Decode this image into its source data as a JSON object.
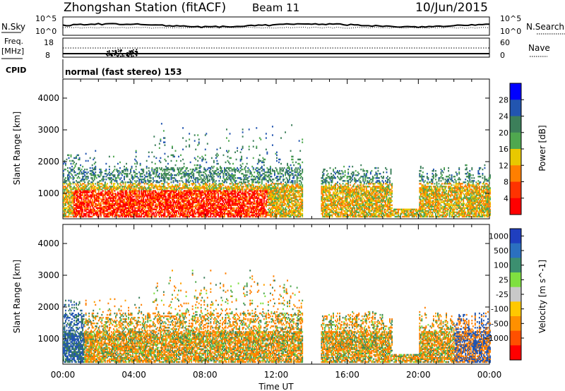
{
  "header": {
    "title": "Zhongshan Station (fitACF)",
    "beam": "Beam 11",
    "date": "10/Jun/2015"
  },
  "top_panel": {
    "left_label": "N.Sky",
    "right_label": "N.Search",
    "left_ticks": [
      "10^5",
      "10^0"
    ],
    "right_ticks": [
      "10^5",
      "10^0"
    ]
  },
  "freq_panel": {
    "left_label_1": "Freq.",
    "left_label_2": "[MHz]",
    "right_label": "Nave",
    "left_ticks": [
      "18",
      "8"
    ],
    "right_ticks": [
      "60",
      "0"
    ]
  },
  "cpid": {
    "label": "CPID",
    "mode_text": "normal (fast stereo) 153"
  },
  "x_axis": {
    "label": "Time UT",
    "ticks": [
      "00:00",
      "04:00",
      "08:00",
      "12:00",
      "16:00",
      "20:00",
      "00:00"
    ]
  },
  "colors": {
    "red": "#ff0000",
    "orange": "#ff7f00",
    "yellow": "#e8c800",
    "green": "#4fa84f",
    "darkgreen": "#3c7f5a",
    "blue": "#2255b0",
    "lightgray": "#c8c8c8",
    "lightgreen": "#7fe040"
  },
  "chart_data": [
    {
      "type": "heatmap",
      "title": "",
      "xlabel": "Time UT",
      "ylabel": "Slant Range [km]",
      "ylim": [
        200,
        4600
      ],
      "xlim": [
        0,
        24
      ],
      "yticks": [
        "1000",
        "2000",
        "3000",
        "4000"
      ],
      "colorbar_label": "Power [dB]",
      "colorbar_ticks": [
        "4",
        "8",
        "12",
        "16",
        "20",
        "24",
        "28"
      ],
      "colorbar_colors": [
        "#0000ff",
        "#2255b0",
        "#3c7f5a",
        "#4fa84f",
        "#e8c800",
        "#ff7f00",
        "#ff3300",
        "#ff0000"
      ]
    },
    {
      "type": "heatmap",
      "title": "",
      "xlabel": "Time UT",
      "ylabel": "Slant Range [km]",
      "ylim": [
        200,
        4600
      ],
      "xlim": [
        0,
        24
      ],
      "yticks": [
        "1000",
        "2000",
        "3000",
        "4000"
      ],
      "colorbar_label": "Velocity [m s^-1]",
      "colorbar_ticks": [
        "1000",
        "500",
        "100",
        "25",
        "-25",
        "-100",
        "-500",
        "-1000"
      ],
      "colorbar_colors": [
        "#1f3fbf",
        "#2b70c0",
        "#3c8f70",
        "#7fe040",
        "#c8c8c8",
        "#ffc800",
        "#ff9000",
        "#ff5000",
        "#ff0000"
      ]
    }
  ]
}
